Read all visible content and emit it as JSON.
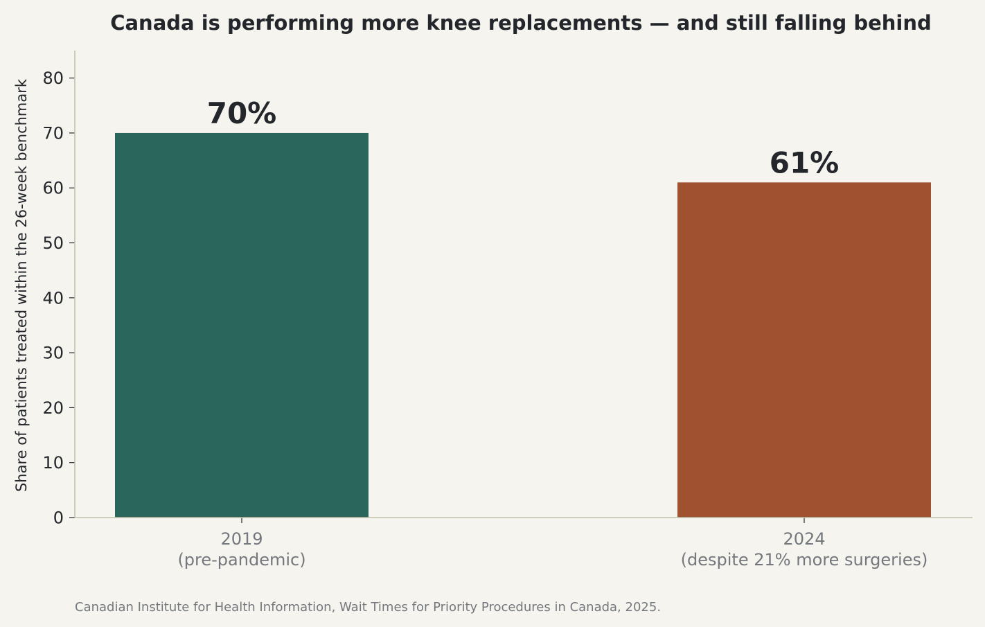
{
  "chart_data": {
    "type": "bar",
    "title": "Canada is performing more knee replacements — and still falling behind",
    "ylabel": "Share of patients treated within the 26-week benchmark",
    "xlabel": "",
    "ylim": [
      0,
      85
    ],
    "yticks": [
      0,
      10,
      20,
      30,
      40,
      50,
      60,
      70,
      80
    ],
    "grid": false,
    "categories": [
      [
        "2019",
        "(pre-pandemic)"
      ],
      [
        "2024",
        "(despite 21% more surgeries)"
      ]
    ],
    "values": [
      70,
      61
    ],
    "data_labels": [
      "70%",
      "61%"
    ],
    "colors": [
      "#2a665c",
      "#a05230"
    ],
    "source": "Canadian Institute for Health Information, Wait Times for Priority Procedures in Canada, 2025."
  }
}
